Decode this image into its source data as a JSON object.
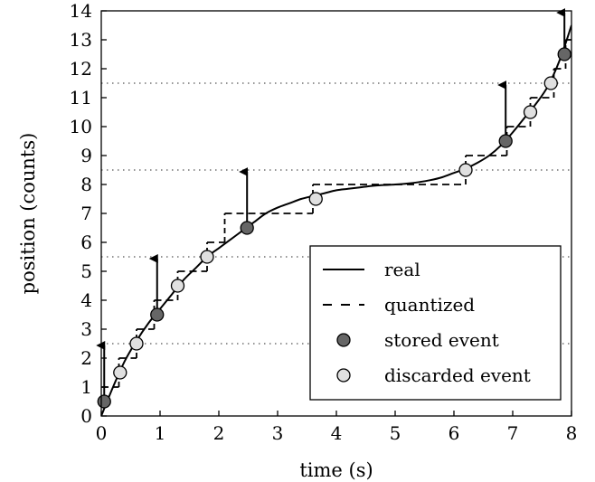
{
  "chart_data": {
    "type": "line",
    "xlabel": "time (s)",
    "ylabel": "position (counts)",
    "xlim": [
      0,
      8
    ],
    "ylim": [
      0,
      14
    ],
    "x_ticks": [
      0,
      1,
      2,
      3,
      4,
      5,
      6,
      7,
      8
    ],
    "y_ticks": [
      0,
      1,
      2,
      3,
      4,
      5,
      6,
      7,
      8,
      9,
      10,
      11,
      12,
      13,
      14
    ],
    "grid": false,
    "threshold_lines": [
      2.5,
      5.5,
      8.5,
      11.5
    ],
    "series": [
      {
        "name": "real",
        "style": "solid",
        "x": [
          0.0,
          0.2,
          0.4,
          0.6,
          0.8,
          1.0,
          1.2,
          1.4,
          1.6,
          1.8,
          2.0,
          2.2,
          2.4,
          2.6,
          2.8,
          3.0,
          3.2,
          3.4,
          3.6,
          3.8,
          4.0,
          4.2,
          4.4,
          4.6,
          4.8,
          5.0,
          5.2,
          5.4,
          5.6,
          5.8,
          6.0,
          6.2,
          6.4,
          6.6,
          6.8,
          7.0,
          7.2,
          7.4,
          7.6,
          7.8,
          8.0
        ],
        "y": [
          0.0,
          1.0,
          1.9,
          2.6,
          3.2,
          3.7,
          4.2,
          4.7,
          5.1,
          5.5,
          5.8,
          6.1,
          6.4,
          6.7,
          7.0,
          7.2,
          7.35,
          7.5,
          7.6,
          7.7,
          7.8,
          7.85,
          7.9,
          7.95,
          7.98,
          8.0,
          8.03,
          8.08,
          8.15,
          8.25,
          8.4,
          8.55,
          8.75,
          9.0,
          9.35,
          9.8,
          10.3,
          10.8,
          11.4,
          12.3,
          13.5
        ]
      },
      {
        "name": "quantized",
        "style": "dashed",
        "x": [
          0.0,
          0.3,
          0.6,
          0.9,
          1.3,
          1.8,
          2.1,
          2.5,
          3.6,
          6.2,
          6.9,
          7.3,
          7.7,
          7.9,
          8.0
        ],
        "y": [
          1,
          2,
          3,
          4,
          5,
          6,
          7,
          7,
          8,
          9,
          10,
          11,
          12,
          13,
          13
        ]
      }
    ],
    "events": [
      {
        "name": "stored event",
        "x": 0.05,
        "y": 0.5,
        "kind": "stored"
      },
      {
        "name": "discarded event",
        "x": 0.32,
        "y": 1.5,
        "kind": "discarded"
      },
      {
        "name": "discarded event",
        "x": 0.6,
        "y": 2.5,
        "kind": "discarded"
      },
      {
        "name": "stored event",
        "x": 0.95,
        "y": 3.5,
        "kind": "stored"
      },
      {
        "name": "discarded event",
        "x": 1.3,
        "y": 4.5,
        "kind": "discarded"
      },
      {
        "name": "discarded event",
        "x": 1.8,
        "y": 5.5,
        "kind": "discarded"
      },
      {
        "name": "stored event",
        "x": 2.48,
        "y": 6.5,
        "kind": "stored"
      },
      {
        "name": "discarded event",
        "x": 3.65,
        "y": 7.5,
        "kind": "discarded"
      },
      {
        "name": "discarded event",
        "x": 6.2,
        "y": 8.5,
        "kind": "discarded"
      },
      {
        "name": "stored event",
        "x": 6.88,
        "y": 9.5,
        "kind": "stored"
      },
      {
        "name": "discarded event",
        "x": 7.3,
        "y": 10.5,
        "kind": "discarded"
      },
      {
        "name": "discarded event",
        "x": 7.65,
        "y": 11.5,
        "kind": "discarded"
      },
      {
        "name": "stored event",
        "x": 7.88,
        "y": 12.5,
        "kind": "stored"
      }
    ],
    "arrows": [
      {
        "x": 0.05,
        "from": 0.5,
        "to": 2.5
      },
      {
        "x": 0.95,
        "from": 3.5,
        "to": 5.5
      },
      {
        "x": 2.48,
        "from": 6.5,
        "to": 8.5
      },
      {
        "x": 6.88,
        "from": 9.5,
        "to": 11.5
      },
      {
        "x": 7.88,
        "from": 12.5,
        "to": 14
      }
    ],
    "legend": {
      "placement": "lower-right",
      "entries": [
        {
          "label": "real",
          "marker": "solid-line"
        },
        {
          "label": "quantized",
          "marker": "dashed-line"
        },
        {
          "label": "stored event",
          "marker": "dark-circle"
        },
        {
          "label": "discarded event",
          "marker": "light-circle"
        }
      ]
    },
    "colors": {
      "stored_fill": "#666666",
      "discarded_fill": "#e0e0e0",
      "line": "#000000",
      "threshold": "#555555"
    }
  }
}
